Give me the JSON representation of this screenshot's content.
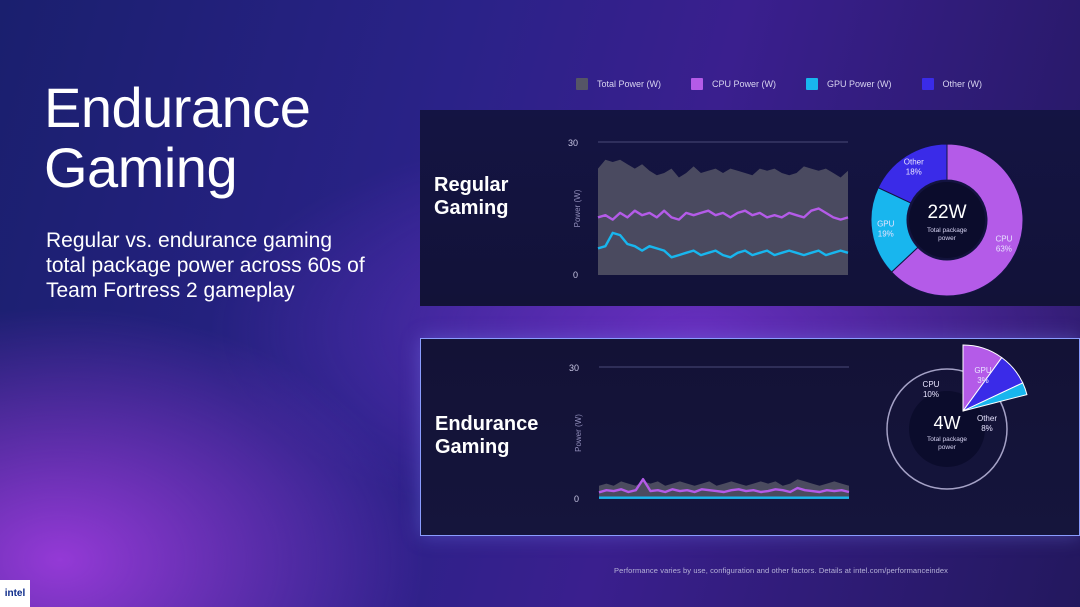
{
  "slide": {
    "title_line1": "Endurance",
    "title_line2": "Gaming",
    "subtitle": "Regular vs. endurance gaming total package power across 60s of Team Fortress 2 gameplay",
    "footer": "Performance varies by use, configuration and other factors. Details at intel.com/performanceindex",
    "logo_text": "intel"
  },
  "legend": [
    {
      "label": "Total Power (W)",
      "color": "#555566"
    },
    {
      "label": "CPU Power (W)",
      "color": "#b45be8"
    },
    {
      "label": "GPU Power (W)",
      "color": "#18b6ee"
    },
    {
      "label": "Other  (W)",
      "color": "#3a2be8"
    }
  ],
  "chart_data": [
    {
      "type": "area",
      "panel_label_line1": "Regular",
      "panel_label_line2": "Gaming",
      "ylabel": "Power (W)",
      "ylim": [
        0,
        30
      ],
      "yticks": [
        "30",
        "0"
      ],
      "series": [
        {
          "name": "Total Power (W)",
          "color": "#555566",
          "values": [
            24,
            26,
            25.5,
            26,
            25,
            24,
            25,
            23.5,
            22.5,
            23,
            24,
            22,
            23,
            24.5,
            23,
            23.5,
            24,
            23,
            24,
            23.5,
            23,
            22.5,
            24,
            23.5,
            24,
            23,
            22.5,
            23,
            24.5,
            24,
            23.5,
            24,
            23,
            22,
            23.5
          ]
        },
        {
          "name": "CPU Power (W)",
          "color": "#b45be8",
          "values": [
            13,
            13.5,
            12.5,
            14,
            13,
            14.5,
            13.5,
            14,
            13,
            14.5,
            13,
            12.5,
            14,
            13.5,
            14,
            14.5,
            13.5,
            14,
            13,
            14,
            14.5,
            13.5,
            14,
            13,
            13.5,
            13,
            14,
            13.5,
            13,
            14.5,
            15,
            14,
            13,
            12.5,
            13
          ]
        },
        {
          "name": "GPU Power (W)",
          "color": "#18b6ee",
          "values": [
            6,
            6.5,
            9.5,
            9,
            7,
            6.5,
            5.5,
            6.5,
            6,
            5.5,
            4,
            4.5,
            5,
            5.5,
            4.5,
            5,
            5.5,
            4.5,
            4,
            5,
            5.5,
            4.5,
            5,
            5.5,
            4.5,
            5,
            5.5,
            5,
            4.5,
            5,
            5.5,
            4.5,
            5,
            5.5,
            5
          ]
        }
      ],
      "donut": {
        "center_value": "22W",
        "center_label": "Total package power",
        "slices": [
          {
            "name": "CPU",
            "percent": 63,
            "label": "CPU\n63%",
            "color": "#b45be8"
          },
          {
            "name": "GPU",
            "percent": 19,
            "label": "GPU\n19%",
            "color": "#18b6ee"
          },
          {
            "name": "Other",
            "percent": 18,
            "label": "Other\n18%",
            "color": "#3a2be8"
          }
        ]
      }
    },
    {
      "type": "area",
      "panel_label_line1": "Endurance",
      "panel_label_line2": "Gaming",
      "ylabel": "Power (W)",
      "ylim": [
        0,
        30
      ],
      "yticks": [
        "30",
        "0"
      ],
      "series": [
        {
          "name": "Total Power (W)",
          "color": "#555566",
          "values": [
            3,
            3.5,
            3,
            4,
            3.5,
            3,
            4,
            3.5,
            4,
            3,
            3.5,
            4,
            3.5,
            3,
            3.5,
            4,
            3,
            3.5,
            4,
            3.5,
            3,
            3.5,
            4,
            3.5,
            4,
            3,
            3.5,
            4.5,
            4,
            3.5,
            3,
            3.5,
            4,
            3.5,
            3
          ]
        },
        {
          "name": "CPU Power (W)",
          "color": "#b45be8",
          "values": [
            1.5,
            2,
            1.8,
            2.2,
            1.6,
            2,
            4.5,
            1.8,
            2,
            1.6,
            2.2,
            1.8,
            2,
            1.6,
            2.2,
            2,
            1.8,
            1.6,
            2,
            2.2,
            1.8,
            2,
            1.6,
            1.8,
            2.2,
            2,
            1.6,
            2.5,
            2,
            1.8,
            1.6,
            2,
            1.8,
            2,
            1.6
          ]
        },
        {
          "name": "GPU Power (W)",
          "color": "#18b6ee",
          "values": [
            0.3,
            0.3,
            0.3,
            0.3,
            0.3,
            0.3,
            0.3,
            0.3,
            0.3,
            0.3,
            0.3,
            0.3,
            0.3,
            0.3,
            0.3,
            0.3,
            0.3,
            0.3,
            0.3,
            0.3,
            0.3,
            0.3,
            0.3,
            0.3,
            0.3,
            0.3,
            0.3,
            0.3,
            0.3,
            0.3,
            0.3,
            0.3,
            0.3,
            0.3,
            0.3
          ]
        }
      ],
      "donut": {
        "center_value": "4W",
        "center_label": "Total package power",
        "slices": [
          {
            "name": "CPU",
            "percent": 10,
            "label": "CPU\n10%",
            "color": "#b45be8"
          },
          {
            "name": "GPU",
            "percent": 3,
            "label": "GPU\n3%",
            "color": "#18b6ee"
          },
          {
            "name": "Other",
            "percent": 8,
            "label": "Other\n8%",
            "color": "#3a2be8"
          }
        ]
      }
    }
  ]
}
